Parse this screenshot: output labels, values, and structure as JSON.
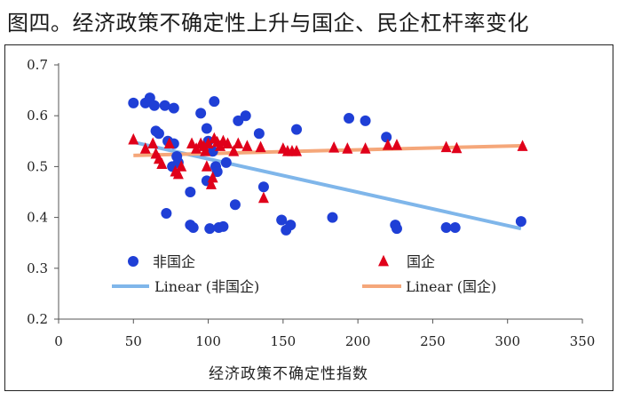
{
  "figure": {
    "title": "图四。经济政策不确定性上升与国企、民企杠杆率变化"
  },
  "chart_data": {
    "type": "scatter",
    "title": "图四。经济政策不确定性上升与国企、民企杠杆率变化",
    "xlabel": "经济政策不确定性指数",
    "ylabel": "",
    "xlim": [
      0,
      350
    ],
    "ylim": [
      0.2,
      0.7
    ],
    "xticks": [
      0,
      50,
      100,
      150,
      200,
      250,
      300,
      350
    ],
    "yticks": [
      0.2,
      0.3,
      0.4,
      0.5,
      0.6,
      0.7
    ],
    "xtick_labels": [
      "0",
      "50",
      "100",
      "150",
      "200",
      "250",
      "300",
      "350"
    ],
    "ytick_labels": [
      "0.2",
      "0.3",
      "0.4",
      "0.5",
      "0.6",
      "0.7"
    ],
    "grid": false,
    "legend_position": "bottom-inside",
    "series": [
      {
        "name": "非国企",
        "kind": "scatter",
        "marker": "circle",
        "color": "#1f3fd6",
        "points": [
          [
            50,
            0.625
          ],
          [
            58,
            0.625
          ],
          [
            61,
            0.635
          ],
          [
            64,
            0.62
          ],
          [
            71,
            0.62
          ],
          [
            77,
            0.615
          ],
          [
            65,
            0.57
          ],
          [
            67,
            0.565
          ],
          [
            73,
            0.55
          ],
          [
            77,
            0.545
          ],
          [
            79,
            0.52
          ],
          [
            80,
            0.508
          ],
          [
            76,
            0.5
          ],
          [
            72,
            0.408
          ],
          [
            88,
            0.45
          ],
          [
            88,
            0.385
          ],
          [
            90,
            0.38
          ],
          [
            95,
            0.605
          ],
          [
            99,
            0.575
          ],
          [
            100,
            0.55
          ],
          [
            99,
            0.472
          ],
          [
            101,
            0.378
          ],
          [
            104,
            0.628
          ],
          [
            103,
            0.53
          ],
          [
            105,
            0.5
          ],
          [
            106,
            0.49
          ],
          [
            107,
            0.38
          ],
          [
            110,
            0.382
          ],
          [
            112,
            0.508
          ],
          [
            118,
            0.425
          ],
          [
            120,
            0.59
          ],
          [
            125,
            0.6
          ],
          [
            134,
            0.565
          ],
          [
            137,
            0.46
          ],
          [
            149,
            0.395
          ],
          [
            152,
            0.375
          ],
          [
            155,
            0.385
          ],
          [
            159,
            0.573
          ],
          [
            183,
            0.4
          ],
          [
            194,
            0.595
          ],
          [
            205,
            0.59
          ],
          [
            219,
            0.558
          ],
          [
            225,
            0.385
          ],
          [
            226,
            0.378
          ],
          [
            259,
            0.38
          ],
          [
            265,
            0.38
          ],
          [
            309,
            0.392
          ]
        ]
      },
      {
        "name": "国企",
        "kind": "scatter",
        "marker": "triangle",
        "color": "#e0001a",
        "points": [
          [
            50,
            0.553
          ],
          [
            58,
            0.535
          ],
          [
            63,
            0.545
          ],
          [
            65,
            0.525
          ],
          [
            67,
            0.515
          ],
          [
            69,
            0.505
          ],
          [
            74,
            0.545
          ],
          [
            78,
            0.49
          ],
          [
            80,
            0.485
          ],
          [
            82,
            0.5
          ],
          [
            89,
            0.545
          ],
          [
            92,
            0.535
          ],
          [
            95,
            0.545
          ],
          [
            97,
            0.54
          ],
          [
            98,
            0.53
          ],
          [
            99,
            0.5
          ],
          [
            100,
            0.545
          ],
          [
            102,
            0.465
          ],
          [
            103,
            0.478
          ],
          [
            104,
            0.555
          ],
          [
            106,
            0.548
          ],
          [
            108,
            0.54
          ],
          [
            110,
            0.55
          ],
          [
            113,
            0.545
          ],
          [
            117,
            0.53
          ],
          [
            120,
            0.545
          ],
          [
            126,
            0.54
          ],
          [
            135,
            0.538
          ],
          [
            137,
            0.438
          ],
          [
            150,
            0.535
          ],
          [
            153,
            0.53
          ],
          [
            156,
            0.53
          ],
          [
            159,
            0.53
          ],
          [
            184,
            0.537
          ],
          [
            193,
            0.535
          ],
          [
            205,
            0.535
          ],
          [
            220,
            0.542
          ],
          [
            226,
            0.542
          ],
          [
            259,
            0.538
          ],
          [
            266,
            0.536
          ],
          [
            310,
            0.54
          ]
        ]
      },
      {
        "name": "Linear (非国企)",
        "kind": "trendline",
        "color": "#7fb6ea",
        "line": [
          [
            50,
            0.548
          ],
          [
            309,
            0.378
          ]
        ]
      },
      {
        "name": "Linear (国企)",
        "kind": "trendline",
        "color": "#f5a77a",
        "line": [
          [
            50,
            0.522
          ],
          [
            309,
            0.541
          ]
        ]
      }
    ]
  }
}
